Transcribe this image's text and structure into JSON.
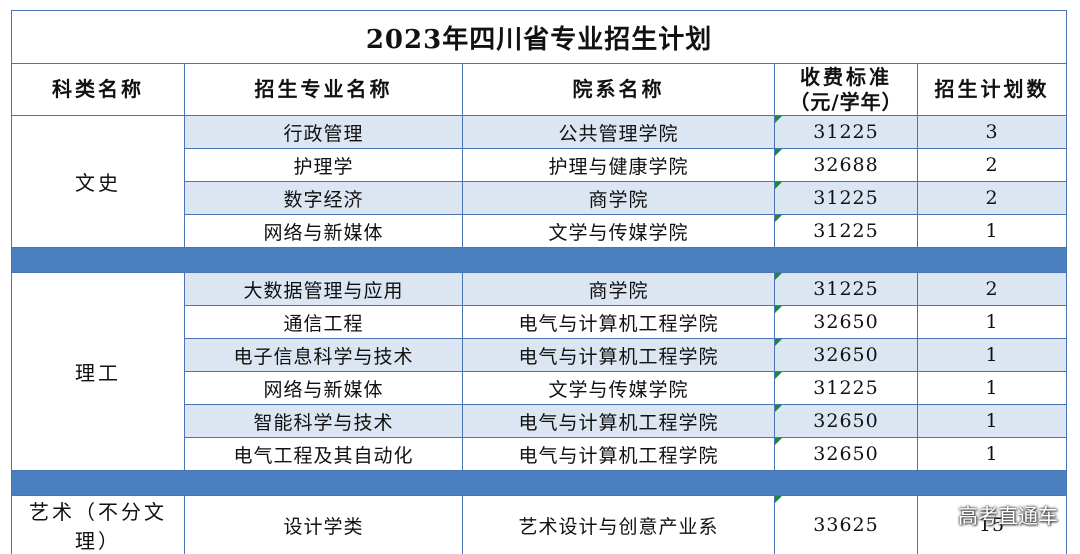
{
  "title": "2023年四川省专业招生计划",
  "headers": {
    "category": "科类名称",
    "major": "招生专业名称",
    "school": "院系名称",
    "fee_line1": "收费标准",
    "fee_line2": "（元/学年）",
    "quota": "招生计划数"
  },
  "groups": [
    {
      "category": "文史",
      "rows": [
        {
          "major": "行政管理",
          "school": "公共管理学院",
          "fee": "31225",
          "quota": "3"
        },
        {
          "major": "护理学",
          "school": "护理与健康学院",
          "fee": "32688",
          "quota": "2"
        },
        {
          "major": "数字经济",
          "school": "商学院",
          "fee": "31225",
          "quota": "2"
        },
        {
          "major": "网络与新媒体",
          "school": "文学与传媒学院",
          "fee": "31225",
          "quota": "1"
        }
      ]
    },
    {
      "category": "理工",
      "rows": [
        {
          "major": "大数据管理与应用",
          "school": "商学院",
          "fee": "31225",
          "quota": "2"
        },
        {
          "major": "通信工程",
          "school": "电气与计算机工程学院",
          "fee": "32650",
          "quota": "1"
        },
        {
          "major": "电子信息科学与技术",
          "school": "电气与计算机工程学院",
          "fee": "32650",
          "quota": "1"
        },
        {
          "major": "网络与新媒体",
          "school": "文学与传媒学院",
          "fee": "31225",
          "quota": "1"
        },
        {
          "major": "智能科学与技术",
          "school": "电气与计算机工程学院",
          "fee": "32650",
          "quota": "1"
        },
        {
          "major": "电气工程及其自动化",
          "school": "电气与计算机工程学院",
          "fee": "32650",
          "quota": "1"
        }
      ]
    },
    {
      "category": "艺术（不分文理）",
      "rows": [
        {
          "major": "设计学类",
          "school": "艺术设计与创意产业系",
          "fee": "33625",
          "quota": "15"
        }
      ]
    }
  ],
  "watermark": "高考直通车",
  "colors": {
    "border": "#4a74b4",
    "row_shade": "#dce6f2",
    "separator": "#4a7fc0",
    "cell_marker": "#1a8a3a"
  }
}
